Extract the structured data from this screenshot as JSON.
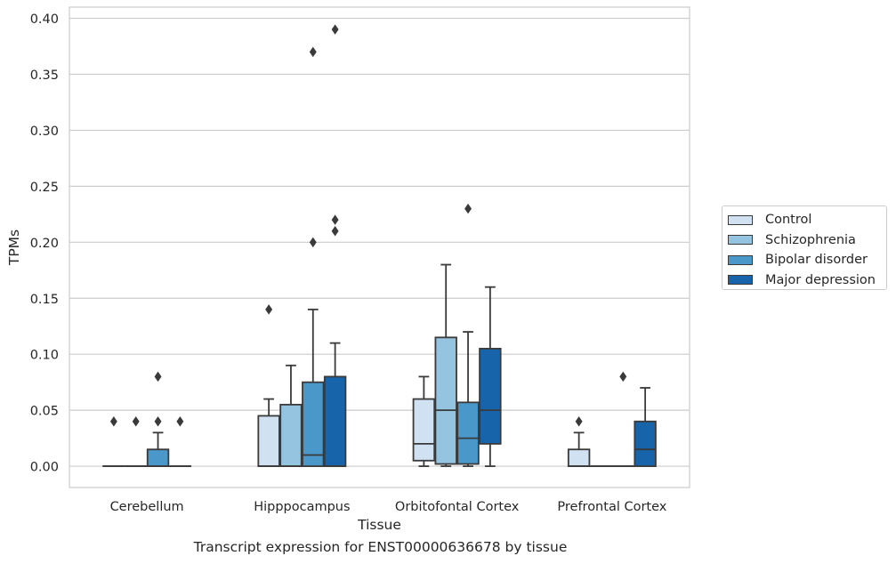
{
  "chart_data": {
    "type": "box",
    "title": "",
    "xlabel": "Tissue",
    "ylabel": "TPMs",
    "caption": "Transcript expression for ENST00000636678 by tissue",
    "ylim": [
      -0.019,
      0.41
    ],
    "yticks": [
      "0.00",
      "0.05",
      "0.10",
      "0.15",
      "0.20",
      "0.25",
      "0.30",
      "0.35",
      "0.40"
    ],
    "grid": "horizontal",
    "legend_position": "right",
    "categories": [
      "Cerebellum",
      "Hipppocampus",
      "Orbitofontal Cortex",
      "Prefrontal Cortex"
    ],
    "series": [
      {
        "name": "Control",
        "color": "#d0e1f2",
        "boxes": [
          {
            "q1": 0.0,
            "median": 0.0,
            "q3": 0.0,
            "whisker_low": 0.0,
            "whisker_high": 0.0,
            "outliers": [
              0.04
            ]
          },
          {
            "q1": 0.0,
            "median": 0.0,
            "q3": 0.045,
            "whisker_low": 0.0,
            "whisker_high": 0.06,
            "outliers": [
              0.14
            ]
          },
          {
            "q1": 0.005,
            "median": 0.02,
            "q3": 0.06,
            "whisker_low": 0.0,
            "whisker_high": 0.08,
            "outliers": []
          },
          {
            "q1": 0.0,
            "median": 0.0,
            "q3": 0.015,
            "whisker_low": 0.0,
            "whisker_high": 0.03,
            "outliers": [
              0.04
            ]
          }
        ]
      },
      {
        "name": "Schizophrenia",
        "color": "#94c4df",
        "boxes": [
          {
            "q1": 0.0,
            "median": 0.0,
            "q3": 0.0,
            "whisker_low": 0.0,
            "whisker_high": 0.0,
            "outliers": [
              0.04
            ]
          },
          {
            "q1": 0.0,
            "median": 0.0,
            "q3": 0.055,
            "whisker_low": 0.0,
            "whisker_high": 0.09,
            "outliers": []
          },
          {
            "q1": 0.002,
            "median": 0.05,
            "q3": 0.115,
            "whisker_low": 0.0,
            "whisker_high": 0.18,
            "outliers": []
          },
          {
            "q1": 0.0,
            "median": 0.0,
            "q3": 0.0,
            "whisker_low": 0.0,
            "whisker_high": 0.0,
            "outliers": []
          }
        ]
      },
      {
        "name": "Bipolar disorder",
        "color": "#4a98c9",
        "boxes": [
          {
            "q1": 0.0,
            "median": 0.0,
            "q3": 0.015,
            "whisker_low": 0.0,
            "whisker_high": 0.03,
            "outliers": [
              0.04,
              0.08
            ]
          },
          {
            "q1": 0.0,
            "median": 0.01,
            "q3": 0.075,
            "whisker_low": 0.0,
            "whisker_high": 0.14,
            "outliers": [
              0.2,
              0.37
            ]
          },
          {
            "q1": 0.002,
            "median": 0.025,
            "q3": 0.057,
            "whisker_low": 0.0,
            "whisker_high": 0.12,
            "outliers": [
              0.23
            ]
          },
          {
            "q1": 0.0,
            "median": 0.0,
            "q3": 0.0,
            "whisker_low": 0.0,
            "whisker_high": 0.0,
            "outliers": [
              0.08
            ]
          }
        ]
      },
      {
        "name": "Major depression",
        "color": "#1764ab",
        "boxes": [
          {
            "q1": 0.0,
            "median": 0.0,
            "q3": 0.0,
            "whisker_low": 0.0,
            "whisker_high": 0.0,
            "outliers": [
              0.04
            ]
          },
          {
            "q1": 0.0,
            "median": 0.0,
            "q3": 0.08,
            "whisker_low": 0.0,
            "whisker_high": 0.11,
            "outliers": [
              0.21,
              0.22,
              0.39
            ]
          },
          {
            "q1": 0.02,
            "median": 0.05,
            "q3": 0.105,
            "whisker_low": 0.0,
            "whisker_high": 0.16,
            "outliers": []
          },
          {
            "q1": 0.0,
            "median": 0.015,
            "q3": 0.04,
            "whisker_low": 0.0,
            "whisker_high": 0.07,
            "outliers": []
          }
        ]
      }
    ]
  }
}
